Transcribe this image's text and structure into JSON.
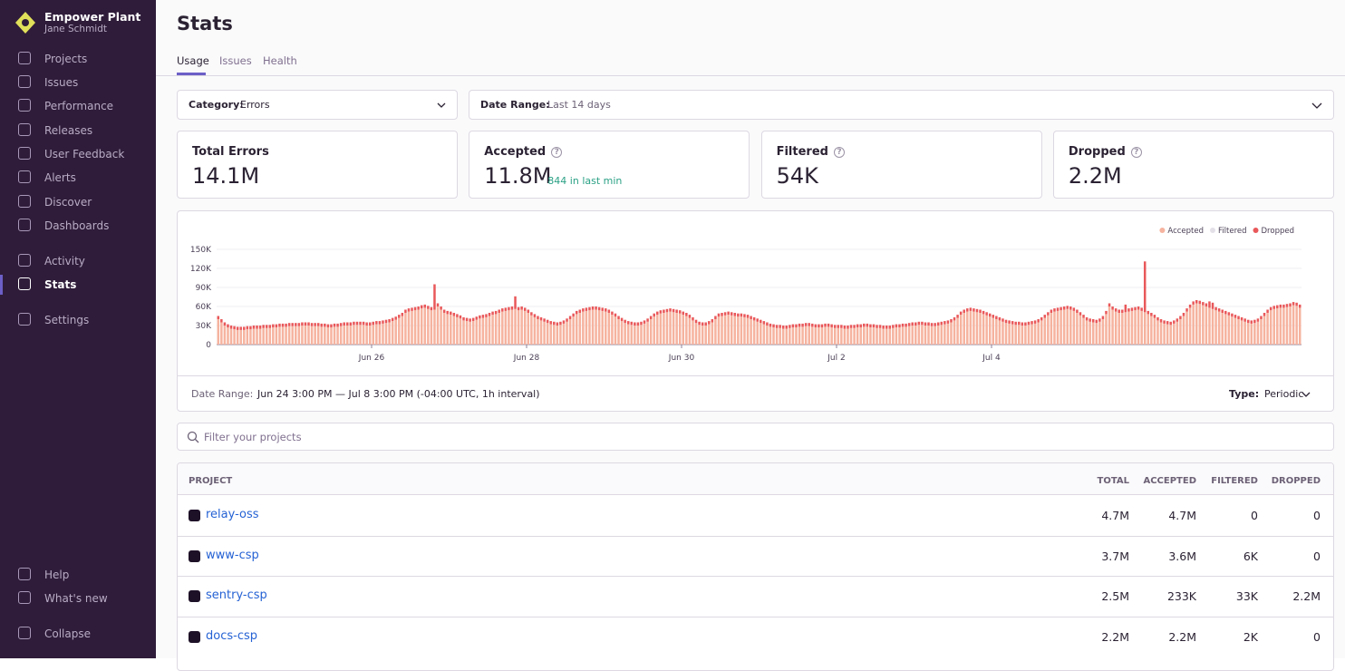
{
  "sidebar": {
    "org": "Empower Plant",
    "user": "Jane Schmidt",
    "nav": [
      "Projects",
      "Issues",
      "Performance",
      "Releases",
      "User Feedback",
      "Alerts",
      "Discover",
      "Dashboards"
    ],
    "nav2": [
      "Activity",
      "Stats"
    ],
    "settings": "Settings",
    "footer": [
      "Help",
      "What's new",
      "Collapse"
    ]
  },
  "header": {
    "title": "Stats",
    "tabs": [
      "Usage",
      "Issues",
      "Health"
    ]
  },
  "filters": {
    "category_label": "Category:",
    "category": "Errors",
    "date_label": "Date Range:",
    "date": "Last 14 days"
  },
  "cards": [
    {
      "label": "Total Errors",
      "value": "14.1M"
    },
    {
      "label": "Accepted",
      "value": "11.8M",
      "note": "844 in last min"
    },
    {
      "label": "Filtered",
      "value": "54K"
    },
    {
      "label": "Dropped",
      "value": "2.2M"
    }
  ],
  "chart_data": {
    "type": "bar",
    "stacked": true,
    "legend": "top-right",
    "grid": true,
    "xlim": [
      0,
      336
    ],
    "xticks": [
      {
        "value": 48,
        "label": "Jun 26"
      },
      {
        "value": 96,
        "label": "Jun 28"
      },
      {
        "value": 144,
        "label": "Jun 30"
      },
      {
        "value": 192,
        "label": "Jul 2"
      },
      {
        "value": 240,
        "label": "Jul 4"
      }
    ],
    "ylim": [
      0,
      150
    ],
    "yticks": [
      0,
      {
        "value": 30,
        "label": "30K"
      },
      {
        "value": 60,
        "label": "60K"
      },
      {
        "value": 90,
        "label": "90K"
      },
      {
        "value": 120,
        "label": "120K"
      },
      {
        "value": 150,
        "label": "150K"
      }
    ],
    "series": [
      {
        "name": "Accepted",
        "color": "#f6b39f",
        "values": [
          40,
          35,
          30,
          27,
          25,
          24,
          23,
          23,
          23,
          24,
          24,
          25,
          25,
          25,
          26,
          26,
          26,
          27,
          27,
          28,
          28,
          28,
          29,
          29,
          29,
          29,
          30,
          30,
          30,
          29,
          29,
          29,
          28,
          28,
          27,
          27,
          28,
          28,
          29,
          30,
          30,
          30,
          31,
          31,
          31,
          31,
          30,
          30,
          31,
          32,
          32,
          33,
          34,
          35,
          37,
          39,
          42,
          45,
          50,
          52,
          53,
          54,
          55,
          57,
          58,
          56,
          54,
          55,
          60,
          55,
          50,
          48,
          47,
          45,
          43,
          41,
          38,
          37,
          36,
          37,
          39,
          41,
          42,
          43,
          45,
          47,
          48,
          50,
          52,
          53,
          54,
          55,
          56,
          54,
          55,
          53,
          50,
          46,
          43,
          40,
          38,
          36,
          34,
          32,
          31,
          30,
          31,
          33,
          36,
          40,
          44,
          48,
          50,
          52,
          53,
          54,
          55,
          55,
          54,
          53,
          52,
          50,
          47,
          44,
          40,
          37,
          34,
          32,
          31,
          30,
          30,
          31,
          33,
          36,
          40,
          44,
          47,
          49,
          50,
          51,
          52,
          51,
          50,
          49,
          47,
          45,
          42,
          38,
          34,
          31,
          30,
          30,
          32,
          35,
          40,
          44,
          45,
          46,
          47,
          46,
          45,
          44,
          44,
          43,
          42,
          40,
          38,
          36,
          34,
          32,
          30,
          28,
          27,
          26,
          26,
          25,
          25,
          26,
          27,
          27,
          28,
          28,
          29,
          29,
          28,
          27,
          27,
          27,
          28,
          28,
          27,
          26,
          26,
          26,
          25,
          25,
          26,
          26,
          27,
          27,
          28,
          28,
          27,
          27,
          26,
          26,
          25,
          25,
          25,
          26,
          27,
          27,
          28,
          28,
          29,
          30,
          30,
          31,
          31,
          30,
          30,
          29,
          29,
          30,
          31,
          32,
          33,
          35,
          38,
          42,
          47,
          50,
          52,
          53,
          52,
          51,
          50,
          48,
          46,
          44,
          42,
          40,
          38,
          36,
          34,
          33,
          32,
          31,
          31,
          30,
          30,
          31,
          32,
          33,
          35,
          38,
          42,
          46,
          50,
          52,
          53,
          54,
          55,
          56,
          55,
          53,
          50,
          46,
          42,
          38,
          36,
          35,
          34,
          36,
          40,
          48,
          60,
          55,
          52,
          50,
          50,
          51,
          52,
          53,
          54,
          55,
          53,
          51,
          48,
          45,
          42,
          38,
          35,
          33,
          32,
          31,
          33,
          36,
          40,
          45,
          52,
          58,
          63,
          65,
          64,
          62,
          60,
          58,
          56,
          54,
          52,
          50,
          48,
          46,
          44,
          42,
          40,
          38,
          36,
          34,
          33,
          34,
          36,
          40,
          45,
          50,
          54,
          56,
          57,
          58,
          58,
          59,
          60,
          62,
          61,
          58
        ]
      },
      {
        "name": "Filtered",
        "color": "#e4e0e8",
        "values": [
          0,
          0,
          0,
          0,
          0,
          0,
          0,
          0,
          0,
          0,
          0,
          0,
          0,
          0,
          0,
          0,
          0,
          0,
          0,
          0,
          0,
          0,
          0,
          0,
          0,
          0,
          0,
          0,
          0,
          0,
          0,
          0,
          0,
          0,
          0,
          0,
          0,
          0,
          0,
          0,
          0,
          0,
          0,
          0,
          0,
          0,
          0,
          0,
          0,
          0,
          0,
          0,
          0,
          0,
          0,
          0,
          0,
          0,
          0,
          0,
          0,
          0,
          0,
          0,
          0,
          0,
          0,
          0,
          0,
          0,
          0,
          0,
          0,
          0,
          0,
          0,
          0,
          0,
          0,
          0,
          0,
          0,
          0,
          0,
          0,
          0,
          0,
          0,
          0,
          0,
          0,
          0,
          0,
          0,
          0,
          0,
          0,
          0,
          0,
          0,
          0,
          0,
          0,
          0,
          0,
          0,
          0,
          0,
          0,
          0,
          0,
          0,
          0,
          0,
          0,
          0,
          0,
          0,
          0,
          0,
          0,
          0,
          0,
          0,
          0,
          0,
          0,
          0,
          0,
          0,
          0,
          0,
          0,
          0,
          0,
          0,
          0,
          0,
          0,
          0,
          0,
          0,
          0,
          0,
          0,
          0,
          0,
          0,
          0,
          0,
          0,
          0,
          0,
          0,
          0,
          0,
          0,
          0,
          0,
          0,
          0,
          0,
          0,
          0,
          0,
          0,
          0,
          0,
          0,
          0,
          0,
          0,
          0,
          0,
          0,
          0,
          0,
          0,
          0,
          0,
          0,
          0,
          0,
          0,
          0,
          0,
          0,
          0,
          0,
          0,
          0,
          0,
          0,
          0,
          0,
          0,
          0,
          0,
          0,
          0,
          0,
          0,
          0,
          0,
          0,
          0,
          0,
          0,
          0,
          0,
          0,
          0,
          0,
          0,
          0,
          0,
          0,
          0,
          0,
          0,
          0,
          0,
          0,
          0,
          0,
          0,
          0,
          0,
          0,
          0,
          0,
          0,
          0,
          0,
          0,
          0,
          0,
          0,
          0,
          0,
          0,
          0,
          0,
          0,
          0,
          0,
          0,
          0,
          0,
          0,
          0,
          0,
          0,
          0,
          0,
          0,
          0,
          0,
          0,
          0,
          0,
          0,
          0,
          0,
          0,
          0,
          0,
          0,
          0,
          0,
          0,
          0,
          0,
          0,
          0,
          0,
          0,
          0,
          0,
          0,
          0,
          0,
          0,
          0,
          0,
          0,
          0,
          0,
          0,
          0,
          0,
          0,
          0,
          0,
          0,
          0,
          0,
          0,
          0,
          0,
          0,
          0,
          0,
          0,
          0,
          0,
          0,
          0,
          0,
          0,
          0,
          0,
          0,
          0,
          0,
          0,
          0,
          0,
          0,
          0,
          0,
          0,
          0,
          0,
          0,
          0,
          0,
          0,
          0,
          0,
          0,
          0,
          0,
          0,
          0,
          0,
          0,
          0,
          0,
          0,
          0,
          0
        ]
      },
      {
        "name": "Dropped",
        "color": "#e9585a",
        "values": [
          5,
          5,
          5,
          5,
          5,
          5,
          5,
          5,
          5,
          5,
          5,
          5,
          5,
          5,
          5,
          5,
          5,
          5,
          5,
          5,
          5,
          5,
          5,
          5,
          5,
          5,
          5,
          5,
          5,
          5,
          5,
          5,
          5,
          5,
          5,
          5,
          5,
          5,
          5,
          5,
          5,
          5,
          5,
          5,
          5,
          5,
          5,
          5,
          5,
          5,
          5,
          5,
          5,
          5,
          5,
          5,
          5,
          5,
          5,
          5,
          5,
          5,
          5,
          5,
          5,
          5,
          5,
          40,
          5,
          5,
          5,
          5,
          5,
          5,
          5,
          5,
          5,
          5,
          5,
          5,
          5,
          5,
          5,
          5,
          5,
          5,
          5,
          5,
          5,
          5,
          5,
          5,
          20,
          5,
          5,
          5,
          5,
          5,
          5,
          5,
          5,
          5,
          5,
          5,
          5,
          5,
          5,
          5,
          5,
          5,
          5,
          5,
          5,
          5,
          5,
          5,
          5,
          5,
          5,
          5,
          5,
          5,
          5,
          5,
          5,
          5,
          5,
          5,
          5,
          5,
          5,
          5,
          5,
          5,
          5,
          5,
          5,
          5,
          5,
          5,
          5,
          5,
          5,
          5,
          5,
          5,
          5,
          5,
          5,
          5,
          5,
          5,
          5,
          5,
          5,
          5,
          5,
          5,
          5,
          5,
          5,
          5,
          5,
          5,
          5,
          5,
          5,
          5,
          5,
          5,
          5,
          5,
          5,
          5,
          5,
          5,
          5,
          5,
          5,
          5,
          5,
          5,
          5,
          5,
          5,
          5,
          5,
          5,
          5,
          5,
          5,
          5,
          5,
          5,
          5,
          5,
          5,
          5,
          5,
          5,
          5,
          5,
          5,
          5,
          5,
          5,
          5,
          5,
          5,
          5,
          5,
          5,
          5,
          5,
          5,
          5,
          5,
          5,
          5,
          5,
          5,
          5,
          5,
          5,
          5,
          5,
          5,
          5,
          5,
          5,
          5,
          5,
          5,
          5,
          5,
          5,
          5,
          5,
          5,
          5,
          5,
          5,
          5,
          5,
          5,
          5,
          5,
          5,
          5,
          5,
          5,
          5,
          5,
          5,
          5,
          5,
          5,
          5,
          5,
          5,
          5,
          5,
          5,
          5,
          5,
          5,
          5,
          5,
          5,
          5,
          5,
          5,
          5,
          5,
          5,
          5,
          5,
          5,
          5,
          5,
          5,
          12,
          5,
          5,
          5,
          5,
          5,
          80,
          5,
          5,
          5,
          5,
          5,
          5,
          5,
          5,
          5,
          5,
          5,
          5,
          5,
          5,
          5,
          5,
          5,
          5,
          5,
          10,
          10,
          5,
          5,
          5,
          5,
          5,
          5,
          5,
          5,
          5,
          5,
          5,
          5,
          5,
          5,
          5,
          5,
          5,
          5,
          5,
          5,
          5,
          5,
          5,
          5,
          5,
          5,
          5,
          5,
          5,
          5,
          5,
          5,
          5,
          5
        ]
      }
    ]
  },
  "chart_footer": {
    "date_label": "Date Range:",
    "date": "Jun 24 3:00 PM — Jul 8 3:00 PM (-04:00 UTC, 1h interval)",
    "type_label": "Type:",
    "type": "Periodic"
  },
  "search_placeholder": "Filter your projects",
  "table": {
    "columns": [
      "PROJECT",
      "TOTAL",
      "ACCEPTED",
      "FILTERED",
      "DROPPED"
    ],
    "rows": [
      [
        "relay-oss",
        "4.7M",
        "4.7M",
        "0",
        "0"
      ],
      [
        "www-csp",
        "3.7M",
        "3.6M",
        "6K",
        "0"
      ],
      [
        "sentry-csp",
        "2.5M",
        "233K",
        "33K",
        "2.2M"
      ],
      [
        "docs-csp",
        "2.2M",
        "2.2M",
        "2K",
        "0"
      ]
    ]
  }
}
